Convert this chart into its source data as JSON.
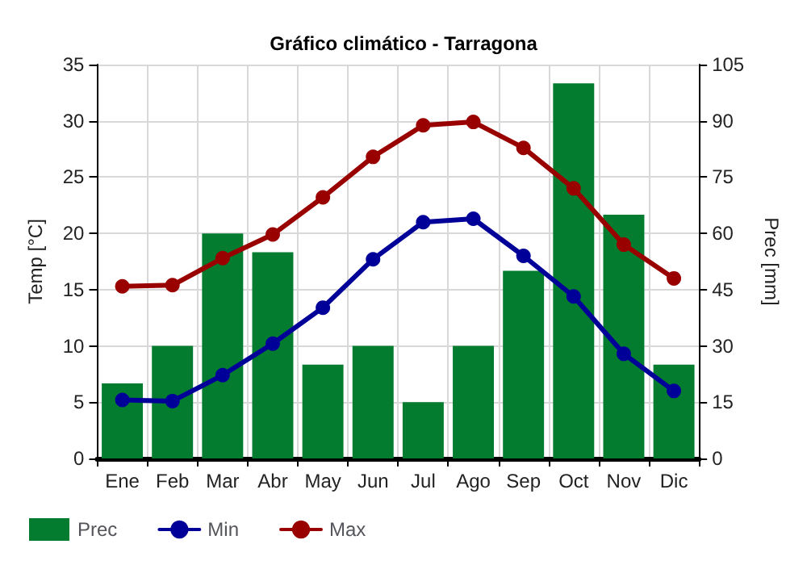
{
  "chart_data": {
    "type": "line",
    "title": "Gráfico climático - Tarragona",
    "ylabel": "Temp [°C]",
    "y2label": "Prec [mm]",
    "categories": [
      "Ene",
      "Feb",
      "Mar",
      "Abr",
      "May",
      "Jun",
      "Jul",
      "Ago",
      "Sep",
      "Oct",
      "Nov",
      "Dic"
    ],
    "series": [
      {
        "name": "Prec",
        "type": "bar",
        "axis": "y2",
        "color": "#047c30",
        "values": [
          20,
          30,
          60,
          55,
          25,
          30,
          15,
          30,
          50,
          100,
          65,
          25
        ]
      },
      {
        "name": "Min",
        "color": "#000099",
        "values": [
          5.2,
          5.1,
          7.4,
          10.2,
          13.4,
          17.7,
          21.0,
          21.3,
          18.0,
          14.4,
          9.3,
          6.0
        ]
      },
      {
        "name": "Max",
        "color": "#990000",
        "values": [
          15.3,
          15.4,
          17.8,
          19.9,
          23.2,
          26.8,
          29.6,
          29.9,
          27.6,
          24.0,
          19.0,
          16.0
        ]
      }
    ],
    "ylim": [
      0,
      35
    ],
    "yticks": [
      0,
      5,
      10,
      15,
      20,
      25,
      30,
      35
    ],
    "y2lim": [
      0,
      105
    ],
    "y2ticks": [
      0,
      15,
      30,
      45,
      60,
      75,
      90,
      105
    ],
    "grid": true,
    "legend": "bottom left",
    "marker": "circle",
    "line_style": "solid"
  }
}
